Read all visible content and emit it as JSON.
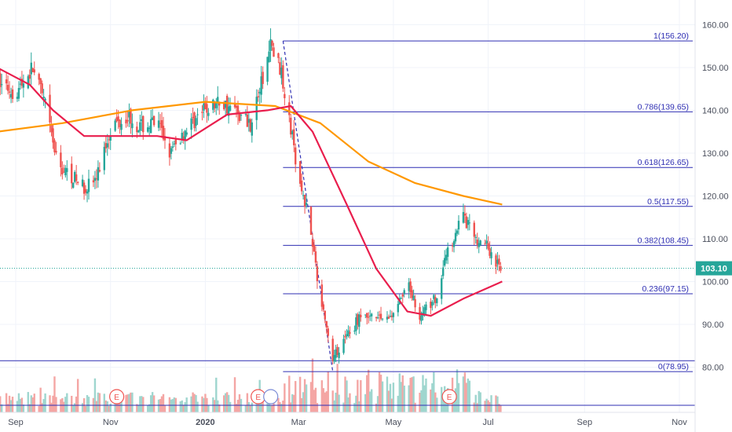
{
  "chart_data": {
    "type": "candlestick",
    "x_ticks": [
      "Sep",
      "Nov",
      "2020",
      "Mar",
      "May",
      "Jul",
      "Sep",
      "Nov"
    ],
    "y_ticks": [
      "160.00",
      "150.00",
      "140.00",
      "130.00",
      "120.00",
      "110.00",
      "100.00",
      "90.00",
      "80.00"
    ],
    "ylim": [
      71,
      166
    ],
    "last_price": {
      "value": 103.1,
      "label": "103.10"
    },
    "fib_levels": [
      {
        "ratio": 1,
        "price": 156.2,
        "label": "1(156.20)"
      },
      {
        "ratio": 0.786,
        "price": 139.65,
        "label": "0.786(139.65)"
      },
      {
        "ratio": 0.618,
        "price": 126.65,
        "label": "0.618(126.65)"
      },
      {
        "ratio": 0.5,
        "price": 117.55,
        "label": "0.5(117.55)"
      },
      {
        "ratio": 0.382,
        "price": 108.45,
        "label": "0.382(108.45)"
      },
      {
        "ratio": 0.236,
        "price": 97.15,
        "label": "0.236(97.15)"
      },
      {
        "ratio": 0,
        "price": 78.95,
        "label": "0(78.95)"
      }
    ],
    "earnings_markers": [
      "E",
      "E",
      "E"
    ],
    "close_series": [
      {
        "date": "2019-08-20",
        "close": 147
      },
      {
        "date": "2019-09-01",
        "close": 144
      },
      {
        "date": "2019-09-12",
        "close": 150
      },
      {
        "date": "2019-09-20",
        "close": 141
      },
      {
        "date": "2019-09-28",
        "close": 127
      },
      {
        "date": "2019-10-06",
        "close": 125
      },
      {
        "date": "2019-10-15",
        "close": 122
      },
      {
        "date": "2019-10-23",
        "close": 124
      },
      {
        "date": "2019-11-01",
        "close": 136
      },
      {
        "date": "2019-11-12",
        "close": 139
      },
      {
        "date": "2019-11-20",
        "close": 136
      },
      {
        "date": "2019-12-01",
        "close": 137
      },
      {
        "date": "2019-12-10",
        "close": 130
      },
      {
        "date": "2019-12-20",
        "close": 136
      },
      {
        "date": "2020-01-01",
        "close": 140
      },
      {
        "date": "2020-01-10",
        "close": 142
      },
      {
        "date": "2020-01-20",
        "close": 140
      },
      {
        "date": "2020-01-30",
        "close": 137
      },
      {
        "date": "2020-02-06",
        "close": 146
      },
      {
        "date": "2020-02-12",
        "close": 155
      },
      {
        "date": "2020-02-18",
        "close": 150
      },
      {
        "date": "2020-02-24",
        "close": 138
      },
      {
        "date": "2020-03-01",
        "close": 124
      },
      {
        "date": "2020-03-08",
        "close": 115
      },
      {
        "date": "2020-03-15",
        "close": 96
      },
      {
        "date": "2020-03-23",
        "close": 82
      },
      {
        "date": "2020-03-30",
        "close": 86
      },
      {
        "date": "2020-04-10",
        "close": 92
      },
      {
        "date": "2020-04-20",
        "close": 91
      },
      {
        "date": "2020-05-01",
        "close": 92
      },
      {
        "date": "2020-05-10",
        "close": 100
      },
      {
        "date": "2020-05-18",
        "close": 92
      },
      {
        "date": "2020-05-28",
        "close": 96
      },
      {
        "date": "2020-06-06",
        "close": 108
      },
      {
        "date": "2020-06-14",
        "close": 116
      },
      {
        "date": "2020-06-22",
        "close": 110
      },
      {
        "date": "2020-07-01",
        "close": 108
      },
      {
        "date": "2020-07-08",
        "close": 103
      }
    ],
    "sma_short": [
      {
        "date": "2019-08-20",
        "value": 150
      },
      {
        "date": "2019-09-10",
        "value": 146
      },
      {
        "date": "2019-09-25",
        "value": 140
      },
      {
        "date": "2019-10-15",
        "value": 134
      },
      {
        "date": "2019-11-10",
        "value": 134
      },
      {
        "date": "2019-12-01",
        "value": 134
      },
      {
        "date": "2019-12-20",
        "value": 133
      },
      {
        "date": "2020-01-15",
        "value": 139
      },
      {
        "date": "2020-02-10",
        "value": 140
      },
      {
        "date": "2020-02-25",
        "value": 141
      },
      {
        "date": "2020-03-10",
        "value": 135
      },
      {
        "date": "2020-04-01",
        "value": 118
      },
      {
        "date": "2020-04-20",
        "value": 103
      },
      {
        "date": "2020-05-10",
        "value": 93
      },
      {
        "date": "2020-05-25",
        "value": 92
      },
      {
        "date": "2020-06-15",
        "value": 96
      },
      {
        "date": "2020-07-10",
        "value": 100
      }
    ],
    "sma_long": [
      {
        "date": "2019-08-20",
        "value": 135
      },
      {
        "date": "2019-10-01",
        "value": 137
      },
      {
        "date": "2019-11-15",
        "value": 140
      },
      {
        "date": "2020-01-01",
        "value": 142
      },
      {
        "date": "2020-02-15",
        "value": 141
      },
      {
        "date": "2020-03-15",
        "value": 137
      },
      {
        "date": "2020-04-15",
        "value": 128
      },
      {
        "date": "2020-05-15",
        "value": 123
      },
      {
        "date": "2020-06-15",
        "value": 120
      },
      {
        "date": "2020-07-10",
        "value": 118
      }
    ],
    "colors": {
      "up": "#26a69a",
      "down": "#ef5350",
      "sma_short": "#e91e4d",
      "sma_long": "#ff9800",
      "fib": "#2f2fb3",
      "last_price": "#26a69a",
      "vol_up": "#9fd6cf",
      "vol_down": "#f4a6a4",
      "grid": "#f0f3fa",
      "axis_text": "#4a4f5c"
    }
  }
}
